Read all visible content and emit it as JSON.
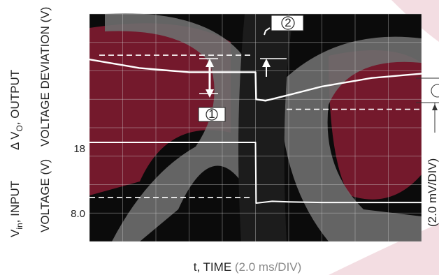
{
  "chart_data": {
    "type": "line",
    "title": "",
    "xlabel": {
      "prefix": "t, TIME ",
      "scale": "(2.0 ms/DIV)"
    },
    "upper_axis_label": {
      "line1": {
        "delta": "Δ V",
        "sub": "O",
        "rest": ", OUTPUT"
      },
      "line2": "VOLTAGE DEVIATION (V)"
    },
    "lower_axis_label": {
      "line1": {
        "main": "V",
        "sub": "in",
        "rest": ", INPUT"
      },
      "line2": "VOLTAGE (V)"
    },
    "right_scale_label": "(2.0 mV/DIV)",
    "y_ticks_input": [
      "18",
      "8.0"
    ],
    "markers": [
      "1",
      "2"
    ],
    "grid": true,
    "x_divisions": 10,
    "y_divisions": 8,
    "series": [
      {
        "x": [
          0,
          0.5,
          1,
          1.5,
          2,
          2.5,
          3,
          3.5,
          4,
          4.5,
          5.0,
          5.02,
          5.3,
          6,
          6.5,
          7,
          7.5,
          8,
          8.5,
          9,
          9.5,
          10
        ],
        "y": [
          6.4,
          6.3,
          6.2,
          6.1,
          6.05,
          6.0,
          5.95,
          5.95,
          5.95,
          5.95,
          5.95,
          5.0,
          4.95,
          5.15,
          5.3,
          5.45,
          5.55,
          5.65,
          5.75,
          5.8,
          5.85,
          5.9
        ],
        "color": "#ffffff"
      },
      {
        "x": [
          0,
          1,
          2,
          3,
          4,
          5.0,
          5.02,
          5.5,
          6,
          7,
          8,
          9,
          10
        ],
        "y": [
          18,
          18,
          18,
          18,
          18,
          18,
          8.0,
          8.3,
          8.2,
          8.1,
          8.1,
          8.1,
          8.1
        ],
        "color": "#ffffff"
      }
    ],
    "reference_lines_dashed": [
      6.55,
      4.65,
      1.55
    ]
  }
}
